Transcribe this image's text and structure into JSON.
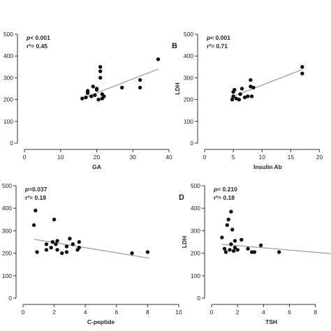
{
  "chart_data": [
    {
      "panel": "",
      "type": "scatter",
      "xlabel": "GA",
      "ylabel": "",
      "xlim": [
        0,
        40
      ],
      "ylim": [
        0,
        500
      ],
      "xticks": [
        0,
        10,
        20,
        30,
        40
      ],
      "yticks": [
        0,
        100,
        200,
        300,
        400,
        500
      ],
      "annotation": {
        "p": "p< 0.001",
        "r2": "r²= 0.45"
      },
      "points": [
        {
          "x": 16,
          "y": 205
        },
        {
          "x": 17,
          "y": 210
        },
        {
          "x": 17.5,
          "y": 230
        },
        {
          "x": 17.5,
          "y": 240
        },
        {
          "x": 18.5,
          "y": 215
        },
        {
          "x": 19,
          "y": 260
        },
        {
          "x": 19.5,
          "y": 220
        },
        {
          "x": 20,
          "y": 245
        },
        {
          "x": 20,
          "y": 250
        },
        {
          "x": 20.5,
          "y": 200
        },
        {
          "x": 21,
          "y": 330
        },
        {
          "x": 21,
          "y": 350
        },
        {
          "x": 21,
          "y": 300
        },
        {
          "x": 21.5,
          "y": 205
        },
        {
          "x": 21.5,
          "y": 225
        },
        {
          "x": 22,
          "y": 215
        },
        {
          "x": 27,
          "y": 255
        },
        {
          "x": 32,
          "y": 255
        },
        {
          "x": 32,
          "y": 290
        },
        {
          "x": 37,
          "y": 385
        }
      ],
      "trend": {
        "x1": 16,
        "y1": 205,
        "x2": 37,
        "y2": 340
      }
    },
    {
      "panel": "B",
      "type": "scatter",
      "xlabel": "Insulin Ab",
      "ylabel": "LDH",
      "xlim": [
        0,
        22
      ],
      "ylim": [
        0,
        500
      ],
      "xticks": [
        0,
        5,
        10,
        15,
        20
      ],
      "yticks": [
        0,
        100,
        200,
        300,
        400,
        500
      ],
      "annotation": {
        "p": "p< 0.001",
        "r2": "r²= 0.71"
      },
      "points": [
        {
          "x": 4.8,
          "y": 200
        },
        {
          "x": 5,
          "y": 215
        },
        {
          "x": 5,
          "y": 235
        },
        {
          "x": 5.2,
          "y": 245
        },
        {
          "x": 5.5,
          "y": 205
        },
        {
          "x": 6,
          "y": 200
        },
        {
          "x": 6.2,
          "y": 225
        },
        {
          "x": 6.5,
          "y": 250
        },
        {
          "x": 7,
          "y": 210
        },
        {
          "x": 7.5,
          "y": 215
        },
        {
          "x": 8,
          "y": 260
        },
        {
          "x": 8.5,
          "y": 255
        },
        {
          "x": 8,
          "y": 290
        },
        {
          "x": 8.2,
          "y": 215
        },
        {
          "x": 17,
          "y": 350
        },
        {
          "x": 17,
          "y": 320
        }
      ],
      "trend": {
        "x1": 4.5,
        "y1": 210,
        "x2": 17,
        "y2": 338
      }
    },
    {
      "panel": "",
      "type": "scatter",
      "xlabel": "C-peptide",
      "ylabel": "",
      "xlim": [
        0,
        10
      ],
      "ylim": [
        0,
        500
      ],
      "xticks": [
        0,
        2,
        4,
        6,
        8,
        10
      ],
      "yticks": [
        0,
        100,
        200,
        300,
        400,
        500
      ],
      "annotation": {
        "p": "p=0.037",
        "r2": "r²= 0.18"
      },
      "points": [
        {
          "x": 0.7,
          "y": 325
        },
        {
          "x": 0.8,
          "y": 390
        },
        {
          "x": 0.9,
          "y": 205
        },
        {
          "x": 1.5,
          "y": 215
        },
        {
          "x": 1.5,
          "y": 240
        },
        {
          "x": 1.8,
          "y": 225
        },
        {
          "x": 1.9,
          "y": 250
        },
        {
          "x": 2,
          "y": 350
        },
        {
          "x": 2.1,
          "y": 240
        },
        {
          "x": 2.2,
          "y": 215
        },
        {
          "x": 2.2,
          "y": 255
        },
        {
          "x": 2.5,
          "y": 200
        },
        {
          "x": 2.8,
          "y": 205
        },
        {
          "x": 2.8,
          "y": 230
        },
        {
          "x": 3,
          "y": 265
        },
        {
          "x": 3.2,
          "y": 240
        },
        {
          "x": 3.5,
          "y": 215
        },
        {
          "x": 3.6,
          "y": 250
        },
        {
          "x": 3.6,
          "y": 225
        },
        {
          "x": 7,
          "y": 200
        },
        {
          "x": 8,
          "y": 205
        }
      ],
      "trend": {
        "x1": 0.7,
        "y1": 262,
        "x2": 8.1,
        "y2": 178
      }
    },
    {
      "panel": "D",
      "type": "scatter",
      "xlabel": "TSH",
      "ylabel": "LDH",
      "xlim": [
        0,
        9.2
      ],
      "ylim": [
        0,
        500
      ],
      "xticks": [
        0,
        2,
        4,
        6,
        8
      ],
      "yticks": [
        0,
        100,
        200,
        300,
        400,
        500
      ],
      "annotation": {
        "p": "p= 0.210",
        "r2": "r²= 0.18"
      },
      "points": [
        {
          "x": 0.8,
          "y": 270
        },
        {
          "x": 1,
          "y": 220
        },
        {
          "x": 1.1,
          "y": 205
        },
        {
          "x": 1.2,
          "y": 325
        },
        {
          "x": 1.3,
          "y": 350
        },
        {
          "x": 1.4,
          "y": 215
        },
        {
          "x": 1.5,
          "y": 240
        },
        {
          "x": 1.5,
          "y": 385
        },
        {
          "x": 1.6,
          "y": 305
        },
        {
          "x": 1.7,
          "y": 210
        },
        {
          "x": 1.8,
          "y": 225
        },
        {
          "x": 1.8,
          "y": 255
        },
        {
          "x": 2,
          "y": 215
        },
        {
          "x": 2.3,
          "y": 260
        },
        {
          "x": 2.8,
          "y": 220
        },
        {
          "x": 3.1,
          "y": 205
        },
        {
          "x": 3.3,
          "y": 205
        },
        {
          "x": 3.8,
          "y": 235
        },
        {
          "x": 5.2,
          "y": 205
        }
      ],
      "trend": {
        "x1": 0.8,
        "y1": 240,
        "x2": 9.2,
        "y2": 198
      }
    }
  ]
}
